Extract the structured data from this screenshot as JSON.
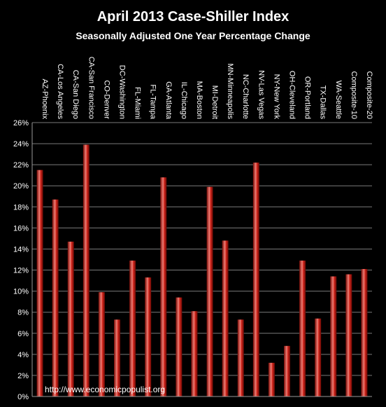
{
  "title": "April 2013 Case-Shiller Index",
  "subtitle": "Seasonally Adjusted One Year Percentage Change",
  "source": "http://www.economicpopulist.org",
  "colors": {
    "background": "#000000",
    "plot_background": "#000000",
    "bar": "#c0140c",
    "bar_highlight": "#f08078",
    "gridline": "#7a7a7a",
    "text": "#ffffff"
  },
  "chart_data": {
    "type": "bar",
    "categories": [
      "AZ-Phoenix",
      "CA-Los Angeles",
      "CA-San Diego",
      "CA-San Francisco",
      "CO-Denver",
      "DC-Washington",
      "FL-Miami",
      "FL-Tampa",
      "GA-Atlanta",
      "IL-Chicago",
      "MA-Boston",
      "MI-Detroit",
      "MN-Minneapolis",
      "NC-Charlotte",
      "NV-Las Vegas",
      "NY-New York",
      "OH-Cleveland",
      "OR-Portland",
      "TX-Dallas",
      "WA-Seattle",
      "Composite-10",
      "Composite-20"
    ],
    "values": [
      21.5,
      18.7,
      14.7,
      23.9,
      9.9,
      7.3,
      12.9,
      11.3,
      20.8,
      9.4,
      8.1,
      19.9,
      14.8,
      7.3,
      22.2,
      3.2,
      4.8,
      12.9,
      7.4,
      11.4,
      11.6,
      12.1
    ],
    "ylim": [
      0,
      26
    ],
    "ytick_step": 2,
    "ytick_format": "percent",
    "grid": true,
    "legend": "none"
  }
}
